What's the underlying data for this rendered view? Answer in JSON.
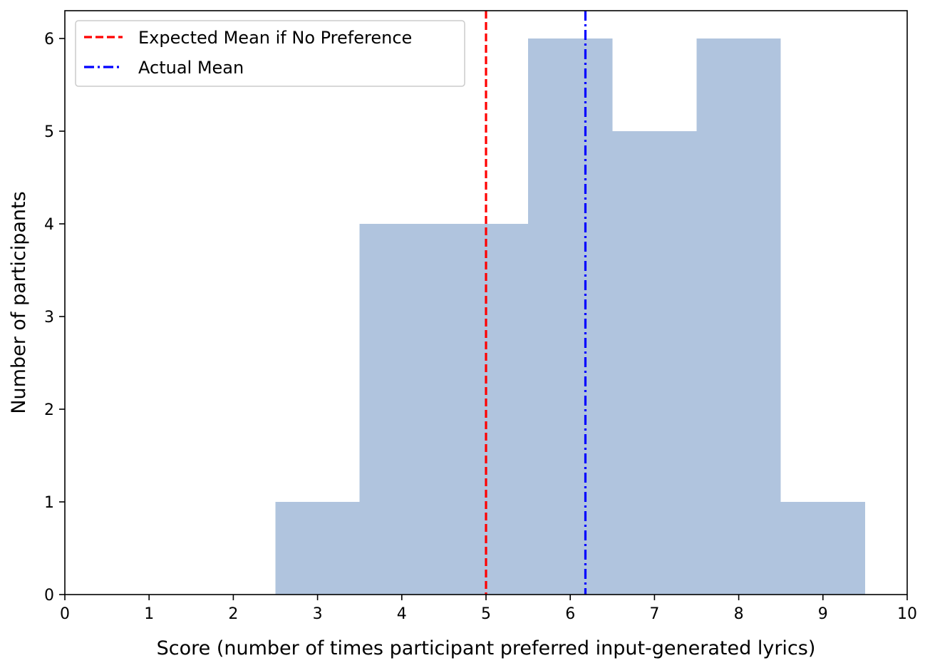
{
  "chart_data": {
    "type": "bar",
    "subtype": "histogram",
    "bins": [
      {
        "start": 2.5,
        "end": 3.5,
        "count": 1
      },
      {
        "start": 3.5,
        "end": 4.5,
        "count": 4
      },
      {
        "start": 4.5,
        "end": 5.5,
        "count": 4
      },
      {
        "start": 5.5,
        "end": 6.5,
        "count": 6
      },
      {
        "start": 6.5,
        "end": 7.5,
        "count": 5
      },
      {
        "start": 7.5,
        "end": 8.5,
        "count": 6
      },
      {
        "start": 8.5,
        "end": 9.5,
        "count": 1
      }
    ],
    "bar_color": "#b0c4de",
    "xlabel": "Score (number of times participant preferred input-generated lyrics)",
    "ylabel": "Number of participants",
    "xlim": [
      0,
      10
    ],
    "ylim": [
      0,
      6.3
    ],
    "xticks": [
      0,
      1,
      2,
      3,
      4,
      5,
      6,
      7,
      8,
      9,
      10
    ],
    "yticks": [
      0,
      1,
      2,
      3,
      4,
      5,
      6
    ],
    "grid": false,
    "vlines": [
      {
        "name": "Expected Mean if No Preference",
        "x": 5.0,
        "color": "#ff0000",
        "style": "dashed"
      },
      {
        "name": "Actual Mean",
        "x": 6.18,
        "color": "#0000ff",
        "style": "dashdot"
      }
    ],
    "legend": {
      "placement": "top-left",
      "entries": [
        {
          "label": "Expected Mean if No Preference",
          "color": "#ff0000",
          "style": "dashed"
        },
        {
          "label": "Actual Mean",
          "color": "#0000ff",
          "style": "dashdot"
        }
      ]
    }
  }
}
